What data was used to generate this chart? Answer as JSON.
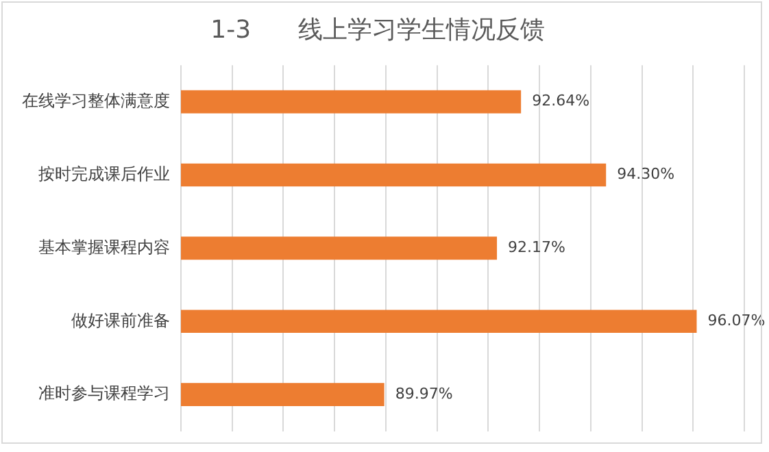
{
  "chart_data": {
    "type": "bar",
    "orientation": "horizontal",
    "title": "1-3      线上学习学生情况反馈",
    "categories": [
      "在线学习整体满意度",
      "按时完成课后作业",
      "基本掌握课程内容",
      "做好课前准备",
      "准时参与课程学习"
    ],
    "values": [
      92.64,
      94.3,
      92.17,
      96.07,
      89.97
    ],
    "value_labels": [
      "92.64%",
      "94.30%",
      "92.17%",
      "96.07%",
      "89.97%"
    ],
    "color": "#ed7d31",
    "xlim": [
      86,
      97
    ],
    "xticks": [
      {
        "value": 86,
        "label": null
      },
      {
        "value": 87,
        "label": null
      },
      {
        "value": 88,
        "label": null
      },
      {
        "value": 89,
        "label": null
      },
      {
        "value": 90,
        "label": null
      },
      {
        "value": 91,
        "label": null
      },
      {
        "value": 92,
        "label": null
      },
      {
        "value": 93,
        "label": null
      },
      {
        "value": 94,
        "label": null
      },
      {
        "value": 95,
        "label": null
      },
      {
        "value": 96,
        "label": null
      },
      {
        "value": 97,
        "label": null
      }
    ],
    "grid": "x",
    "tick_labels": "y",
    "legend": false
  }
}
